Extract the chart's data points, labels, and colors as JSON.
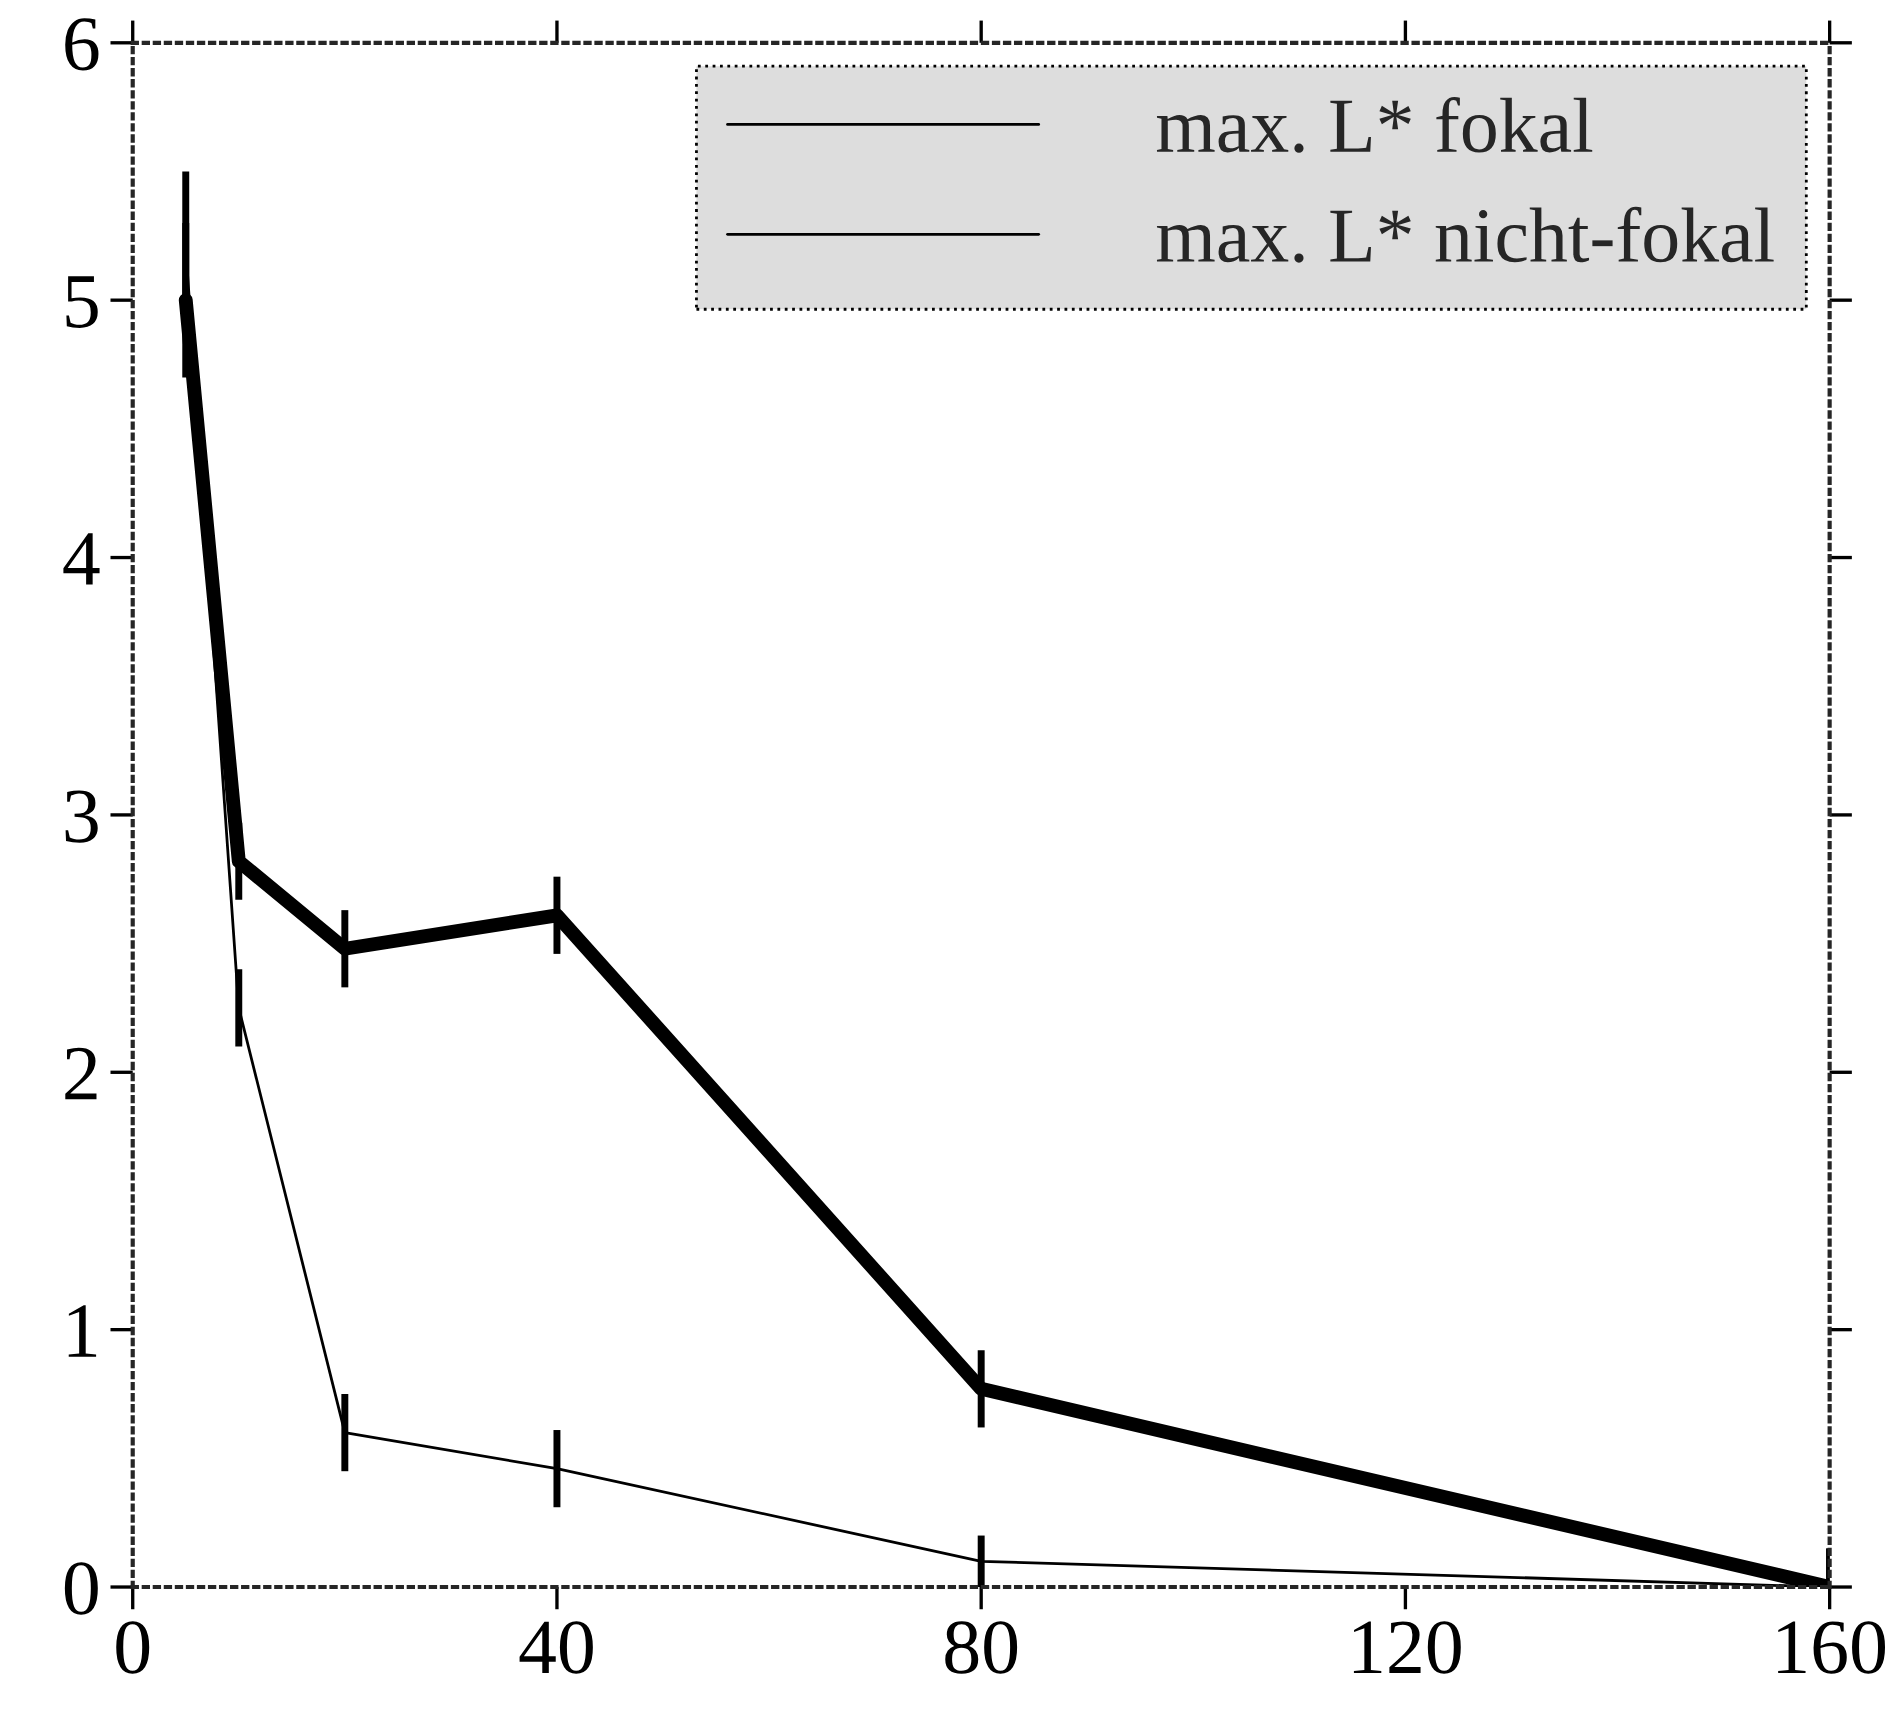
{
  "chart_data": {
    "type": "line",
    "x": [
      5,
      10,
      20,
      40,
      80,
      160
    ],
    "series": [
      {
        "name": "max. L* fokal",
        "color": "#000000",
        "values": [
          5.0,
          2.82,
          2.48,
          2.61,
          0.77,
          0.0
        ],
        "errors": [
          0.3,
          0.15,
          0.15,
          0.15,
          0.15,
          [
            0,
            0.15
          ]
        ]
      },
      {
        "name": "max. L* nicht-fokal",
        "color": "#000000",
        "values": [
          5.2,
          2.25,
          0.6,
          0.46,
          0.1,
          0.0
        ],
        "errors": [
          0.3,
          0.15,
          0.15,
          0.15,
          0.1,
          [
            0,
            0.15
          ]
        ]
      }
    ],
    "xlim": [
      0,
      160
    ],
    "xticks": [
      0,
      40,
      80,
      120,
      160
    ],
    "ylim": [
      0,
      6
    ],
    "yticks": [
      0,
      1,
      2,
      3,
      4,
      5,
      6
    ],
    "legend": "top right",
    "grid": false,
    "marker": "none",
    "line_style": "solid"
  }
}
